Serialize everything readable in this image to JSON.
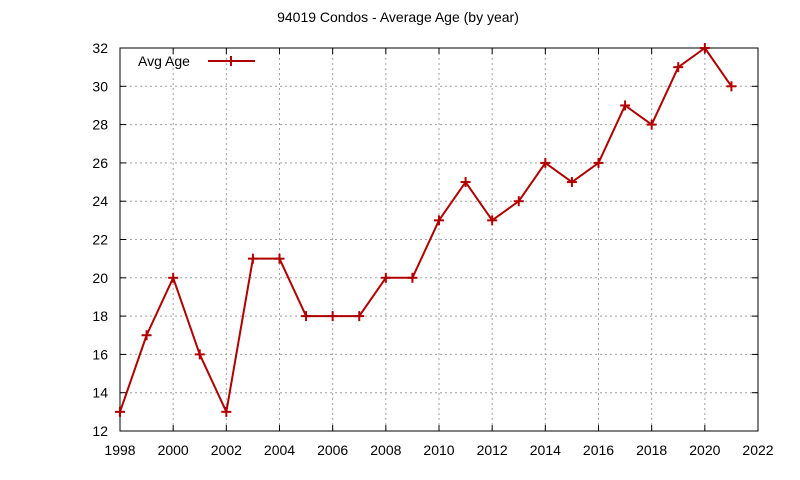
{
  "chart_data": {
    "type": "line",
    "title": "94019 Condos - Average Age (by year)",
    "xlabel": "",
    "ylabel": "",
    "xlim": [
      1998,
      2022
    ],
    "ylim": [
      12,
      32
    ],
    "xticks": [
      1998,
      2000,
      2002,
      2004,
      2006,
      2008,
      2010,
      2012,
      2014,
      2016,
      2018,
      2020,
      2022
    ],
    "yticks": [
      12,
      14,
      16,
      18,
      20,
      22,
      24,
      26,
      28,
      30,
      32
    ],
    "grid": true,
    "legend_position": "top-left",
    "series": [
      {
        "name": "Avg Age",
        "color": "#b00000",
        "marker": "plus",
        "x": [
          1998,
          1999,
          2000,
          2001,
          2002,
          2003,
          2004,
          2005,
          2006,
          2007,
          2008,
          2009,
          2010,
          2011,
          2012,
          2013,
          2014,
          2015,
          2016,
          2017,
          2018,
          2019,
          2020,
          2021
        ],
        "y": [
          13,
          17,
          20,
          16,
          13,
          21,
          21,
          18,
          18,
          18,
          20,
          20,
          23,
          25,
          23,
          24,
          26,
          25,
          26,
          29,
          28,
          31,
          32,
          30
        ]
      }
    ]
  }
}
